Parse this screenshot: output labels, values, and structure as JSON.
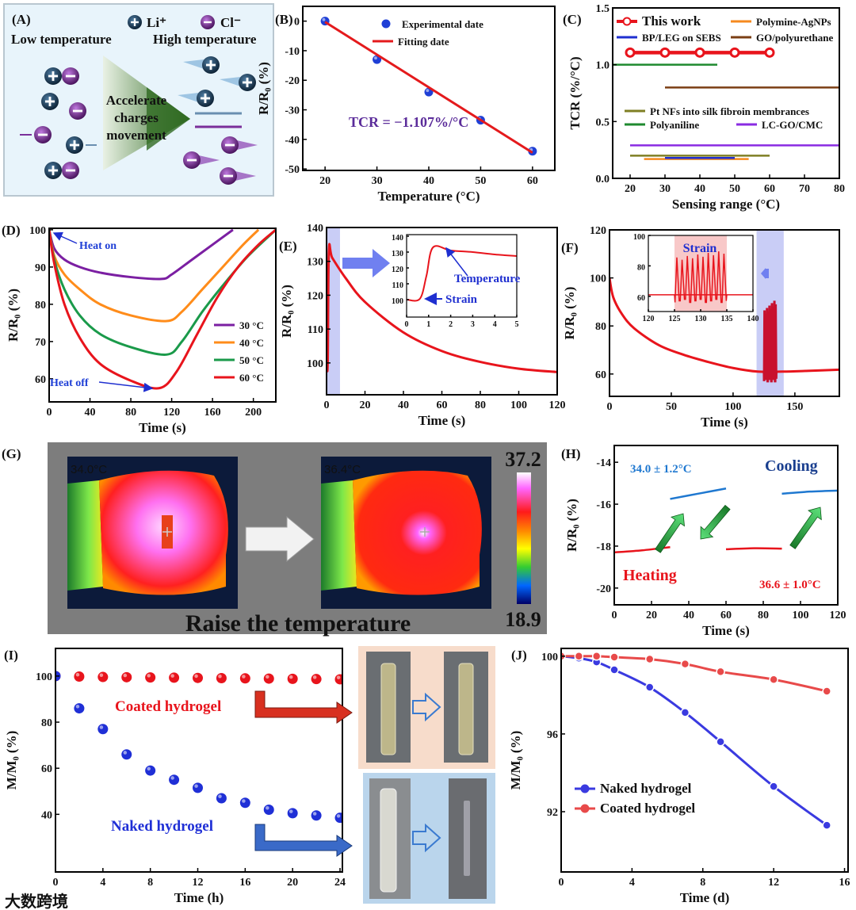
{
  "watermark": "大数跨境",
  "panel_a": {
    "label": "(A)",
    "li_label": "Li⁺",
    "cl_label": "Cl⁻",
    "low_temp": "Low temperature",
    "high_temp": "High temperature",
    "center_text": [
      "Accelerate",
      "charges",
      "movement"
    ],
    "colors": {
      "cation": "#1d3a56",
      "anion": "#7a2f9a",
      "label": "#c0642a",
      "center": "#e8141c"
    }
  },
  "panel_g": {
    "label": "(G)",
    "before_temp": "34.0°C",
    "after_temp": "36.4°C",
    "scale_max": "37.2",
    "scale_min": "18.9",
    "caption": "Raise the temperature"
  },
  "panel_i_photos": {
    "top_bg": "#f7dccb",
    "bottom_bg": "#bad5ec"
  },
  "chart_data": [
    {
      "id": "B",
      "type": "scatter",
      "panel_label": "(B)",
      "xlabel": "Temperature (°C)",
      "ylabel": "R/R₀ (%)",
      "xlim": [
        15.7,
        64.3
      ],
      "ylim": [
        -50.5,
        5
      ],
      "xticks": [
        20,
        30,
        40,
        50,
        60
      ],
      "yticks": [
        0,
        -10,
        -20,
        -30,
        -40,
        -50
      ],
      "series": [
        {
          "name": "Experimental date",
          "kind": "scatter",
          "color": "#1f3fd6",
          "x": [
            20,
            30,
            40,
            50,
            60
          ],
          "y": [
            0,
            -13,
            -24,
            -33.5,
            -44
          ]
        },
        {
          "name": "Fitting date",
          "kind": "line",
          "color": "#e41a1c",
          "x": [
            20,
            60
          ],
          "y": [
            -0.3,
            -44.5
          ]
        }
      ],
      "annotations": [
        {
          "text": "TCR = −1.107%/°C",
          "color": "#5b2c9a"
        }
      ]
    },
    {
      "id": "C",
      "type": "bar",
      "panel_label": "(C)",
      "xlabel": "Sensing range (°C)",
      "ylabel": "TCR (%/°C)",
      "xlim": [
        15,
        80
      ],
      "ylim": [
        0,
        1.5
      ],
      "xticks": [
        20,
        30,
        40,
        50,
        60,
        70,
        80
      ],
      "yticks": [
        0.0,
        0.5,
        1.0,
        1.5
      ],
      "ytick_labels": [
        "0.0",
        "0.5",
        "1.0",
        "1.5"
      ],
      "series": [
        {
          "name": "This work",
          "kind": "range",
          "color": "#e8141c",
          "label_color": "#e8141c",
          "x": [
            20,
            60
          ],
          "y": 1.107,
          "markers": [
            20,
            30,
            40,
            50,
            60
          ]
        },
        {
          "name": "Polymine-AgNPs",
          "kind": "range",
          "color": "#f58a1f",
          "label_color": "#111",
          "x": [
            24,
            54
          ],
          "y": 0.17
        },
        {
          "name": "BP/LEG on SEBS",
          "kind": "range",
          "color": "#1f2fd0",
          "label_color": "#111",
          "x": [
            30,
            50
          ],
          "y": 0.18
        },
        {
          "name": "GO/polyurethane",
          "kind": "range",
          "color": "#7b3f14",
          "label_color": "#111",
          "x": [
            30,
            80
          ],
          "y": 0.8
        },
        {
          "name": "Pt NFs into silk fibroin membrances",
          "kind": "range",
          "color": "#7f7f24",
          "label_color": "#111",
          "x": [
            20,
            60
          ],
          "y": 0.2
        },
        {
          "name": "Polyaniline",
          "kind": "range",
          "color": "#1f8a2f",
          "label_color": "#111",
          "x": [
            15,
            45
          ],
          "y": 1.0
        },
        {
          "name": "LC-GO/CMC",
          "kind": "range",
          "color": "#8a2be2",
          "label_color": "#111",
          "x": [
            20,
            80
          ],
          "y": 0.29
        }
      ]
    },
    {
      "id": "D",
      "type": "line",
      "panel_label": "(D)",
      "xlabel": "Time (s)",
      "ylabel": "R/R₀ (%)",
      "xlim": [
        0,
        222
      ],
      "ylim": [
        53.8,
        100.4
      ],
      "xticks": [
        0,
        40,
        80,
        120,
        160,
        200
      ],
      "yticks": [
        60,
        70,
        80,
        90,
        100
      ],
      "series": [
        {
          "name": "30 °C",
          "kind": "line",
          "color": "#7b1fa2",
          "x": [
            0,
            5,
            15,
            30,
            50,
            80,
            110,
            120,
            140,
            160,
            180
          ],
          "y": [
            100,
            95,
            92,
            90,
            88.5,
            87.3,
            86.8,
            88,
            92,
            96,
            100
          ]
        },
        {
          "name": "40 °C",
          "kind": "line",
          "color": "#ff8c1a",
          "x": [
            0,
            5,
            15,
            30,
            50,
            80,
            115,
            130,
            150,
            170,
            190,
            205
          ],
          "y": [
            100,
            93,
            88,
            84,
            80,
            77,
            75.5,
            78,
            84,
            90,
            96,
            100
          ]
        },
        {
          "name": "50 °C",
          "kind": "line",
          "color": "#1a9a4a",
          "x": [
            0,
            5,
            15,
            30,
            50,
            80,
            115,
            130,
            150,
            170,
            195,
            222
          ],
          "y": [
            100,
            92,
            84,
            77,
            72,
            68.5,
            66.5,
            70,
            78,
            85,
            93,
            100
          ]
        },
        {
          "name": "60 °C",
          "kind": "line",
          "color": "#e8141c",
          "x": [
            0,
            5,
            15,
            30,
            50,
            80,
            108,
            125,
            145,
            165,
            185,
            205,
            222
          ],
          "y": [
            100,
            91,
            80,
            71,
            64,
            59.5,
            57.5,
            62,
            72,
            82,
            90,
            96,
            100
          ]
        }
      ],
      "annotations": [
        {
          "text": "Heat on",
          "color": "#1f3fd6"
        },
        {
          "text": "Heat off",
          "color": "#1f3fd6"
        }
      ]
    },
    {
      "id": "E",
      "type": "line",
      "panel_label": "(E)",
      "xlabel": "Time (s)",
      "ylabel": "R/R₀ (%)",
      "xlim": [
        0,
        120
      ],
      "ylim": [
        90.6,
        140
      ],
      "xticks": [
        0,
        20,
        40,
        60,
        80,
        100,
        120
      ],
      "yticks": [
        100,
        110,
        120,
        130,
        140
      ],
      "highlight_band": [
        0,
        7
      ],
      "series": [
        {
          "name": "R/R0",
          "kind": "line",
          "color": "#e8141c",
          "x": [
            0,
            0.6,
            1.2,
            3,
            10,
            20,
            40,
            60,
            80,
            100,
            120
          ],
          "y": [
            100,
            100,
            133,
            131,
            125,
            118,
            109,
            103.5,
            100.3,
            98.3,
            97.3
          ]
        }
      ],
      "inset": {
        "xlim": [
          0,
          5
        ],
        "ylim": [
          89,
          141
        ],
        "xticks": [
          0,
          1,
          2,
          3,
          4,
          5
        ],
        "yticks": [
          100,
          110,
          120,
          130,
          140
        ],
        "series": [
          {
            "name": "inset",
            "kind": "line",
            "color": "#e8141c",
            "x": [
              0,
              0.6,
              0.9,
              1.2,
              2,
              3,
              4,
              5
            ],
            "y": [
              100,
              100.5,
              115,
              133,
              131,
              130,
              128.5,
              127.5
            ]
          }
        ],
        "annotations": [
          {
            "text": "Temperature",
            "color": "#1f2fd0"
          },
          {
            "text": "Strain",
            "color": "#1f2fd0"
          }
        ]
      }
    },
    {
      "id": "F",
      "type": "line",
      "panel_label": "(F)",
      "xlabel": "Time (s)",
      "ylabel": "R/R₀ (%)",
      "xlim": [
        0,
        186
      ],
      "ylim": [
        50.7,
        120
      ],
      "xticks": [
        0,
        50,
        100,
        150
      ],
      "yticks": [
        60,
        80,
        100,
        120
      ],
      "highlight_band": [
        119,
        141
      ],
      "series": [
        {
          "name": "R/R0",
          "kind": "line",
          "color": "#e8141c",
          "x": [
            0,
            3,
            10,
            20,
            40,
            60,
            80,
            100,
            120,
            140,
            160,
            186
          ],
          "y": [
            100,
            92,
            85,
            79,
            72,
            68,
            65,
            62.5,
            61,
            61,
            61.3,
            61.8
          ]
        },
        {
          "name": "strain",
          "kind": "oscillation",
          "color": "#c8102e",
          "x_range": [
            125,
            135
          ],
          "cycles": 10,
          "min": 57,
          "max": 91,
          "baseline": 61
        }
      ],
      "inset": {
        "xlim": [
          120,
          140
        ],
        "ylim": [
          50,
          100
        ],
        "xticks": [
          120,
          125,
          130,
          135,
          140
        ],
        "yticks": [
          60,
          80,
          100
        ],
        "highlight_band": [
          125,
          135
        ],
        "series": [
          {
            "name": "base",
            "kind": "line",
            "color": "#e8141c",
            "x": [
              120,
              125,
              135,
              140
            ],
            "y": [
              61,
              61,
              61,
              61
            ]
          },
          {
            "name": "strain",
            "kind": "oscillation",
            "color": "#e8141c",
            "x_range": [
              125,
              135
            ],
            "cycles": 10,
            "min": 56,
            "max": 90,
            "baseline": 61
          }
        ],
        "annotations": [
          {
            "text": "Strain",
            "color": "#1f2fd0"
          }
        ]
      }
    },
    {
      "id": "H",
      "type": "line",
      "panel_label": "(H)",
      "xlabel": "Time (s)",
      "ylabel": "R/R₀ (%)",
      "xlim": [
        0,
        120
      ],
      "ylim": [
        -20.8,
        -13.2
      ],
      "xticks": [
        0,
        20,
        40,
        60,
        80,
        100,
        120
      ],
      "yticks": [
        -14,
        -16,
        -18,
        -20
      ],
      "series": [
        {
          "name": "heating-1",
          "kind": "line",
          "color": "#e8141c",
          "x": [
            0,
            15,
            30
          ],
          "y": [
            -18.3,
            -18.2,
            -18.05
          ]
        },
        {
          "name": "cooling-1",
          "kind": "line",
          "color": "#1f78d0",
          "x": [
            30,
            45,
            60
          ],
          "y": [
            -15.75,
            -15.5,
            -15.25
          ]
        },
        {
          "name": "heating-2",
          "kind": "line",
          "color": "#e8141c",
          "x": [
            60,
            75,
            90
          ],
          "y": [
            -18.15,
            -18.1,
            -18.12
          ]
        },
        {
          "name": "cooling-2",
          "kind": "line",
          "color": "#1f78d0",
          "x": [
            90,
            105,
            120
          ],
          "y": [
            -15.5,
            -15.4,
            -15.35
          ]
        }
      ],
      "annotations": [
        {
          "text": "34.0 ± 1.2°C",
          "color": "#1f78d0"
        },
        {
          "text": "Cooling",
          "color": "#1a3f8f"
        },
        {
          "text": "Heating",
          "color": "#e8141c"
        },
        {
          "text": "36.6 ± 1.0°C",
          "color": "#e8141c"
        }
      ]
    },
    {
      "id": "I",
      "type": "scatter",
      "panel_label": "(I)",
      "xlabel": "Time (h)",
      "ylabel": "M/M₀ (%)",
      "xlim": [
        0,
        24.2
      ],
      "ylim": [
        15,
        112
      ],
      "xticks": [
        0,
        4,
        8,
        12,
        16,
        20,
        24
      ],
      "yticks": [
        40,
        60,
        80,
        100
      ],
      "series": [
        {
          "name": "Coated hydrogel",
          "kind": "scatter",
          "color": "#e8141c",
          "x": [
            0,
            2,
            4,
            6,
            8,
            10,
            12,
            14,
            16,
            18,
            20,
            22,
            24
          ],
          "y": [
            100,
            99.8,
            99.6,
            99.5,
            99.4,
            99.3,
            99.2,
            99.1,
            99,
            98.9,
            98.8,
            98.7,
            98.6
          ]
        },
        {
          "name": "Naked hydrogel",
          "kind": "scatter",
          "color": "#1f2fd6",
          "x": [
            0,
            2,
            4,
            6,
            8,
            10,
            12,
            14,
            16,
            18,
            20,
            22,
            24
          ],
          "y": [
            100,
            86,
            77,
            66,
            59,
            55,
            51.5,
            47,
            45,
            42,
            40.5,
            39.5,
            38.5
          ]
        }
      ],
      "annotations": [
        {
          "text": "Coated hydrogel",
          "color": "#e8141c"
        },
        {
          "text": "Naked hydrogel",
          "color": "#1f2fd6"
        }
      ]
    },
    {
      "id": "J",
      "type": "line",
      "panel_label": "(J)",
      "xlabel": "Time (d)",
      "ylabel": "M/M₀ (%)",
      "xlim": [
        0,
        16.2
      ],
      "ylim": [
        88.9,
        100.4
      ],
      "xticks": [
        0,
        4,
        8,
        12,
        16
      ],
      "yticks": [
        92,
        96,
        100
      ],
      "series": [
        {
          "name": "Naked hydrogel",
          "kind": "line-marker",
          "color": "#3a3ae0",
          "x": [
            0,
            1,
            2,
            3,
            5,
            7,
            9,
            12,
            15
          ],
          "y": [
            100,
            99.9,
            99.7,
            99.3,
            98.4,
            97.1,
            95.6,
            93.3,
            91.3
          ]
        },
        {
          "name": "Coated hydrogel",
          "kind": "line-marker",
          "color": "#e84a4a",
          "x": [
            0,
            1,
            2,
            3,
            5,
            7,
            9,
            12,
            15
          ],
          "y": [
            100,
            100,
            100,
            99.95,
            99.85,
            99.6,
            99.2,
            98.8,
            98.2
          ]
        }
      ]
    }
  ]
}
